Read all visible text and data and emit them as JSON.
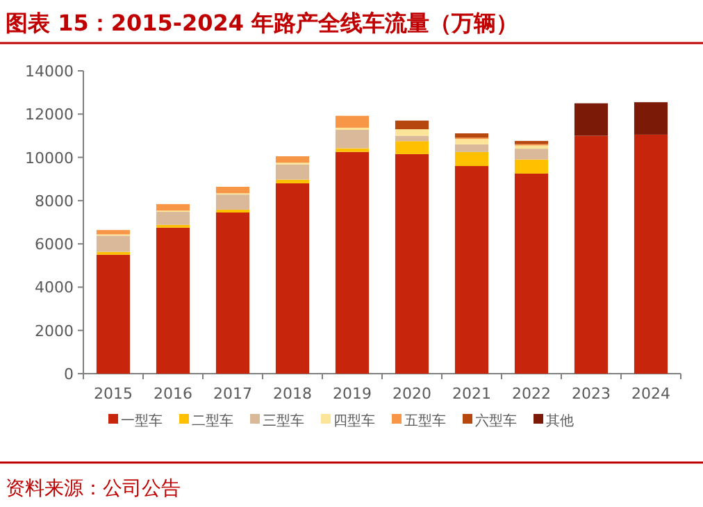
{
  "chart_data": {
    "type": "bar",
    "stacked": true,
    "title": "图表 15：2015-2024 年路产全线车流量（万辆）",
    "categories": [
      "2015",
      "2016",
      "2017",
      "2018",
      "2019",
      "2020",
      "2021",
      "2022",
      "2023",
      "2024"
    ],
    "series": [
      {
        "name": "一型车",
        "color": "#c8260c",
        "values": [
          5500,
          6750,
          7450,
          8800,
          10250,
          10150,
          9600,
          9250,
          11000,
          11050
        ]
      },
      {
        "name": "二型车",
        "color": "#ffc000",
        "values": [
          130,
          130,
          130,
          170,
          170,
          600,
          650,
          650,
          0,
          0
        ]
      },
      {
        "name": "三型车",
        "color": "#d9b99a",
        "values": [
          750,
          600,
          700,
          700,
          850,
          250,
          350,
          500,
          0,
          0
        ]
      },
      {
        "name": "四型车",
        "color": "#fce598",
        "values": [
          60,
          60,
          60,
          80,
          100,
          300,
          250,
          150,
          0,
          0
        ]
      },
      {
        "name": "五型车",
        "color": "#f79646",
        "values": [
          200,
          300,
          300,
          300,
          550,
          0,
          60,
          60,
          0,
          0
        ]
      },
      {
        "name": "六型车",
        "color": "#b5470f",
        "values": [
          0,
          0,
          0,
          0,
          0,
          400,
          200,
          150,
          0,
          0
        ]
      },
      {
        "name": "其他",
        "color": "#7b1a07",
        "values": [
          0,
          0,
          0,
          0,
          0,
          0,
          0,
          0,
          1500,
          1500
        ]
      }
    ],
    "ylim": [
      0,
      14000
    ],
    "yticks": [
      0,
      2000,
      4000,
      6000,
      8000,
      10000,
      12000,
      14000
    ],
    "legend": "bottom",
    "annotations": [
      "资料来源：公司公告"
    ]
  }
}
